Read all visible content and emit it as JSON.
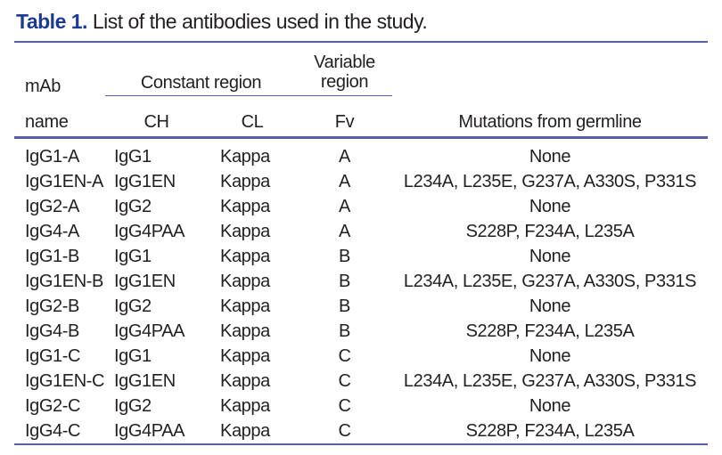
{
  "caption": {
    "label": "Table 1.",
    "text": "List of the antibodies used in the study."
  },
  "table": {
    "group_headers": {
      "constant": "Constant region",
      "variable_line1": "Variable",
      "variable_line2": "region"
    },
    "columns": {
      "mab_line1": "mAb",
      "mab_line2": "name",
      "ch": "CH",
      "cl": "CL",
      "fv": "Fv",
      "mutations": "Mutations from germline"
    },
    "rows": [
      {
        "name": "IgG1-A",
        "ch": "IgG1",
        "cl": "Kappa",
        "fv": "A",
        "mutations": "None"
      },
      {
        "name": "IgG1EN-A",
        "ch": "IgG1EN",
        "cl": "Kappa",
        "fv": "A",
        "mutations": "L234A, L235E, G237A, A330S, P331S"
      },
      {
        "name": "IgG2-A",
        "ch": "IgG2",
        "cl": "Kappa",
        "fv": "A",
        "mutations": "None"
      },
      {
        "name": "IgG4-A",
        "ch": "IgG4PAA",
        "cl": "Kappa",
        "fv": "A",
        "mutations": "S228P, F234A, L235A"
      },
      {
        "name": "IgG1-B",
        "ch": "IgG1",
        "cl": "Kappa",
        "fv": "B",
        "mutations": "None"
      },
      {
        "name": "IgG1EN-B",
        "ch": "IgG1EN",
        "cl": "Kappa",
        "fv": "B",
        "mutations": "L234A, L235E, G237A, A330S, P331S"
      },
      {
        "name": "IgG2-B",
        "ch": "IgG2",
        "cl": "Kappa",
        "fv": "B",
        "mutations": "None"
      },
      {
        "name": "IgG4-B",
        "ch": "IgG4PAA",
        "cl": "Kappa",
        "fv": "B",
        "mutations": "S228P, F234A, L235A"
      },
      {
        "name": "IgG1-C",
        "ch": "IgG1",
        "cl": "Kappa",
        "fv": "C",
        "mutations": "None"
      },
      {
        "name": "IgG1EN-C",
        "ch": "IgG1EN",
        "cl": "Kappa",
        "fv": "C",
        "mutations": "L234A, L235E, G237A, A330S, P331S"
      },
      {
        "name": "IgG2-C",
        "ch": "IgG2",
        "cl": "Kappa",
        "fv": "C",
        "mutations": "None"
      },
      {
        "name": "IgG4-C",
        "ch": "IgG4PAA",
        "cl": "Kappa",
        "fv": "C",
        "mutations": "S228P, F234A, L235A"
      }
    ]
  },
  "colors": {
    "caption_label": "#1d3a92",
    "rule": "#5a5da8",
    "text": "#231f20",
    "background": "#ffffff"
  }
}
